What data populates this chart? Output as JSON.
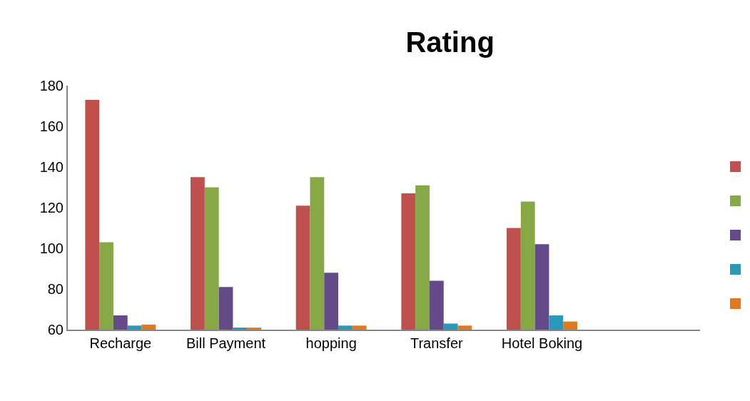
{
  "chart_data": {
    "type": "bar",
    "title": "Rating",
    "categories": [
      "Recharge",
      "Bill Payment",
      "hopping",
      "Transfer",
      "Hotel Boking",
      null
    ],
    "series": [
      {
        "color": "#c0504d",
        "values": [
          173,
          135,
          121,
          127,
          110,
          null
        ]
      },
      {
        "color": "#86a845",
        "values": [
          103,
          130,
          135,
          131,
          123,
          null
        ]
      },
      {
        "color": "#654a8a",
        "values": [
          67,
          81,
          88,
          84,
          102,
          null
        ]
      },
      {
        "color": "#2a98b8",
        "values": [
          62,
          61,
          62,
          63,
          67,
          null
        ]
      },
      {
        "color": "#e07a20",
        "values": [
          62.5,
          61,
          62,
          62,
          64,
          null
        ]
      }
    ],
    "ylim": [
      60,
      180
    ],
    "yticks": [
      60,
      80,
      100,
      120,
      140,
      160,
      180
    ],
    "grid": false
  }
}
